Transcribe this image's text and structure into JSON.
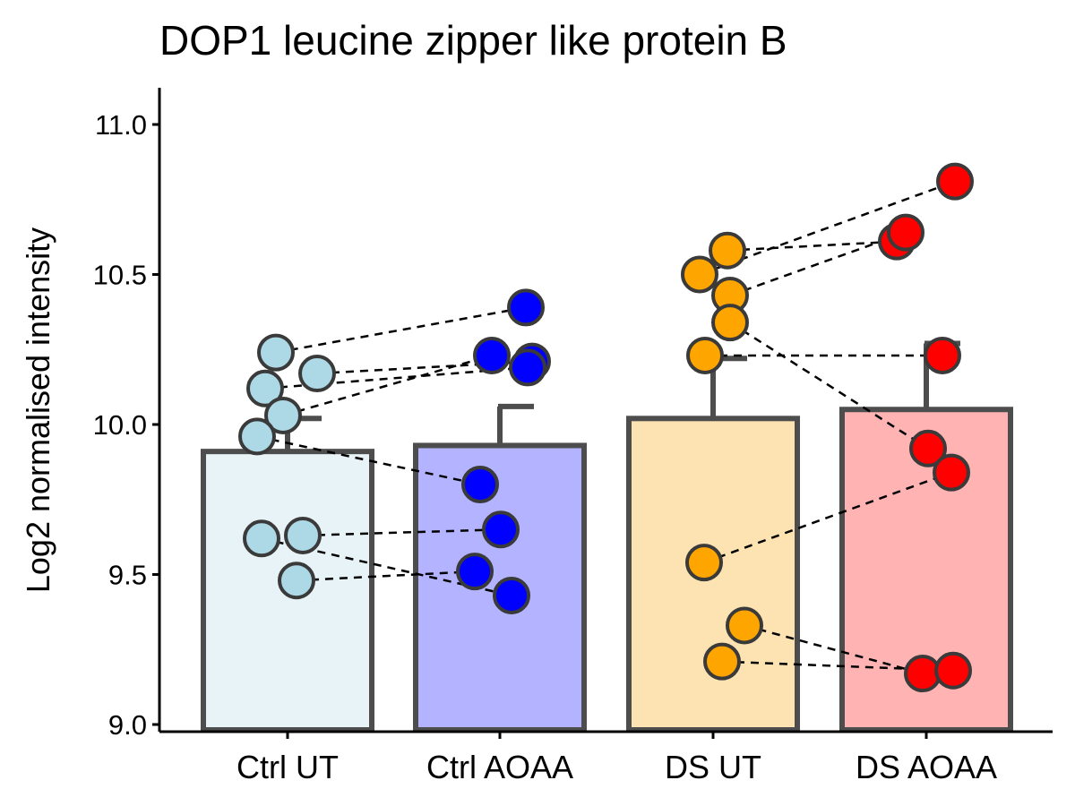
{
  "chart_data": {
    "type": "bar",
    "title": "DOP1 leucine zipper like protein B",
    "xlabel": "",
    "ylabel": "Log2 normalised intensity",
    "ylim": [
      9.0,
      11.1
    ],
    "yticks": [
      9.0,
      9.5,
      10.0,
      10.5,
      11.0
    ],
    "ytick_labels": [
      "9.0",
      "9.5",
      "10.0",
      "10.5",
      "11.0"
    ],
    "grid": false,
    "legend": "none",
    "categories": [
      "Ctrl UT",
      "Ctrl AOAA",
      "DS UT",
      "DS AOAA"
    ],
    "bars": [
      {
        "category": "Ctrl UT",
        "mean": 9.91,
        "error": 0.11,
        "bar_color": "#e8f3f8",
        "point_color": "#add8e6"
      },
      {
        "category": "Ctrl AOAA",
        "mean": 9.93,
        "error": 0.13,
        "bar_color": "#b3b3ff",
        "point_color": "#0000ff"
      },
      {
        "category": "DS UT",
        "mean": 10.02,
        "error": 0.2,
        "bar_color": "#fde3b2",
        "point_color": "#ffa500"
      },
      {
        "category": "DS AOAA",
        "mean": 10.05,
        "error": 0.22,
        "bar_color": "#ffb3b3",
        "point_color": "#ff0000"
      }
    ],
    "pairs": [
      {
        "group": "Ctrl",
        "ut": 10.24,
        "aoaa": 10.39
      },
      {
        "group": "Ctrl",
        "ut": 10.17,
        "aoaa": 10.21
      },
      {
        "group": "Ctrl",
        "ut": 10.12,
        "aoaa": 10.19
      },
      {
        "group": "Ctrl",
        "ut": 10.03,
        "aoaa": 10.23
      },
      {
        "group": "Ctrl",
        "ut": 9.96,
        "aoaa": 9.8
      },
      {
        "group": "Ctrl",
        "ut": 9.63,
        "aoaa": 9.65
      },
      {
        "group": "Ctrl",
        "ut": 9.62,
        "aoaa": 9.43
      },
      {
        "group": "Ctrl",
        "ut": 9.48,
        "aoaa": 9.51
      },
      {
        "group": "DS",
        "ut": 10.58,
        "aoaa": 10.61
      },
      {
        "group": "DS",
        "ut": 10.5,
        "aoaa": 10.81
      },
      {
        "group": "DS",
        "ut": 10.43,
        "aoaa": 10.64
      },
      {
        "group": "DS",
        "ut": 10.34,
        "aoaa": 9.92
      },
      {
        "group": "DS",
        "ut": 10.23,
        "aoaa": 10.23
      },
      {
        "group": "DS",
        "ut": 9.54,
        "aoaa": 9.84
      },
      {
        "group": "DS",
        "ut": 9.33,
        "aoaa": 9.17
      },
      {
        "group": "DS",
        "ut": 9.21,
        "aoaa": 9.18
      }
    ]
  },
  "colors": {
    "axis": "#000000",
    "bar_outline": "#4d4d4d",
    "point_outline": "#3a3a3a",
    "connector": "#000000"
  }
}
